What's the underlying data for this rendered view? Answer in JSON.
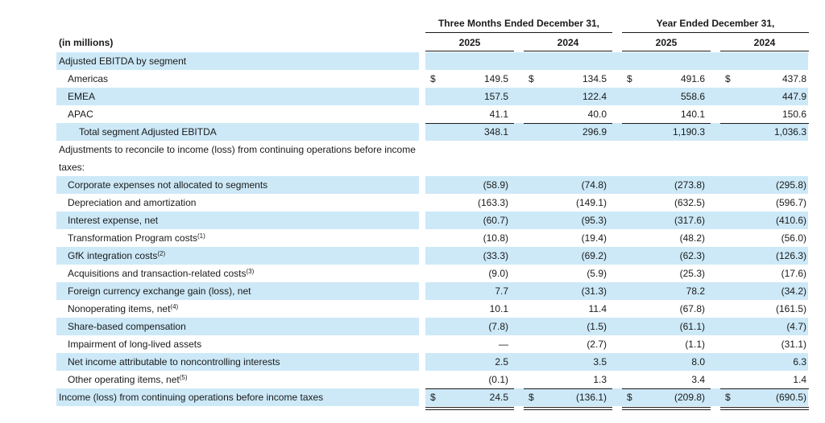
{
  "header": {
    "group_q": "Three Months Ended December 31,",
    "group_y": "Year Ended December 31,",
    "unit_label": "(in millions)",
    "years": [
      "2025",
      "2024",
      "2025",
      "2024"
    ]
  },
  "rows": [
    {
      "label": "Adjusted EBITDA by segment",
      "indent": 0,
      "values": [
        "",
        "",
        "",
        ""
      ],
      "dollar": false
    },
    {
      "label": "Americas",
      "indent": 1,
      "values": [
        "149.5",
        "134.5",
        "491.6",
        "437.8"
      ],
      "dollar": true
    },
    {
      "label": "EMEA",
      "indent": 1,
      "values": [
        "157.5",
        "122.4",
        "558.6",
        "447.9"
      ],
      "dollar": false
    },
    {
      "label": "APAC",
      "indent": 1,
      "values": [
        "41.1",
        "40.0",
        "140.1",
        "150.6"
      ],
      "dollar": false
    },
    {
      "label": "Total segment Adjusted EBITDA",
      "indent": 2,
      "values": [
        "348.1",
        "296.9",
        "1,190.3",
        "1,036.3"
      ],
      "dollar": false
    },
    {
      "label": "Adjustments to reconcile to income (loss) from continuing operations before income taxes:",
      "indent": 0,
      "values": [
        "",
        "",
        "",
        ""
      ],
      "dollar": false,
      "wrap": true
    },
    {
      "label": "Corporate expenses not allocated to segments",
      "indent": 1,
      "values": [
        "(58.9)",
        "(74.8)",
        "(273.8)",
        "(295.8)"
      ],
      "dollar": false
    },
    {
      "label": "Depreciation and amortization",
      "indent": 1,
      "values": [
        "(163.3)",
        "(149.1)",
        "(632.5)",
        "(596.7)"
      ],
      "dollar": false
    },
    {
      "label": "Interest expense, net",
      "indent": 1,
      "values": [
        "(60.7)",
        "(95.3)",
        "(317.6)",
        "(410.6)"
      ],
      "dollar": false
    },
    {
      "label": "Transformation Program costs",
      "sup": "(1)",
      "indent": 1,
      "values": [
        "(10.8)",
        "(19.4)",
        "(48.2)",
        "(56.0)"
      ],
      "dollar": false
    },
    {
      "label": "GfK integration costs",
      "sup": "(2)",
      "indent": 1,
      "values": [
        "(33.3)",
        "(69.2)",
        "(62.3)",
        "(126.3)"
      ],
      "dollar": false
    },
    {
      "label": "Acquisitions and transaction-related costs",
      "sup": "(3)",
      "indent": 1,
      "values": [
        "(9.0)",
        "(5.9)",
        "(25.3)",
        "(17.6)"
      ],
      "dollar": false
    },
    {
      "label": "Foreign currency exchange gain (loss), net",
      "indent": 1,
      "values": [
        "7.7",
        "(31.3)",
        "78.2",
        "(34.2)"
      ],
      "dollar": false
    },
    {
      "label": "Nonoperating items, net",
      "sup": "(4)",
      "indent": 1,
      "values": [
        "10.1",
        "11.4",
        "(67.8)",
        "(161.5)"
      ],
      "dollar": false
    },
    {
      "label": "Share-based compensation",
      "indent": 1,
      "values": [
        "(7.8)",
        "(1.5)",
        "(61.1)",
        "(4.7)"
      ],
      "dollar": false
    },
    {
      "label": "Impairment of long-lived assets",
      "indent": 1,
      "values": [
        "—",
        "(2.7)",
        "(1.1)",
        "(31.1)"
      ],
      "dollar": false
    },
    {
      "label": "Net income attributable to noncontrolling interests",
      "indent": 1,
      "values": [
        "2.5",
        "3.5",
        "8.0",
        "6.3"
      ],
      "dollar": false
    },
    {
      "label": "Other operating items, net",
      "sup": "(5)",
      "indent": 1,
      "values": [
        "(0.1)",
        "1.3",
        "3.4",
        "1.4"
      ],
      "dollar": false
    },
    {
      "label": "Income (loss) from continuing operations before income taxes",
      "indent": 0,
      "values": [
        "24.5",
        "(136.1)",
        "(209.8)",
        "(690.5)"
      ],
      "dollar": true
    }
  ],
  "currency_symbol": "$",
  "colors": {
    "shade": "#cde9f8",
    "text": "#1a1a1a"
  }
}
